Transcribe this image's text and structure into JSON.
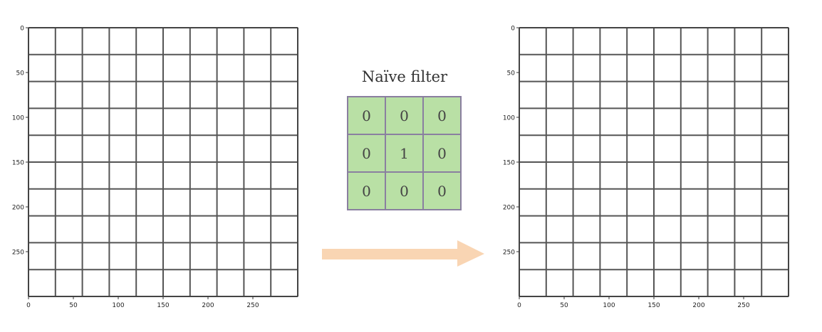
{
  "left_plot": {
    "x_ticks": [
      "0",
      "50",
      "100",
      "150",
      "200",
      "250"
    ],
    "y_ticks": [
      "0",
      "50",
      "100",
      "150",
      "200",
      "250"
    ]
  },
  "right_plot": {
    "x_ticks": [
      "0",
      "50",
      "100",
      "150",
      "200",
      "250"
    ],
    "y_ticks": [
      "0",
      "50",
      "100",
      "150",
      "200",
      "250"
    ]
  },
  "filter": {
    "title": "Naïve filter",
    "cells": [
      "0",
      "0",
      "0",
      "0",
      "1",
      "0",
      "0",
      "0",
      "0"
    ]
  },
  "colors": {
    "filter_fill": "#b9e0a5",
    "filter_border": "#8a7fa0",
    "arrow": "#f9d5b3",
    "grid_line": "#555555"
  }
}
